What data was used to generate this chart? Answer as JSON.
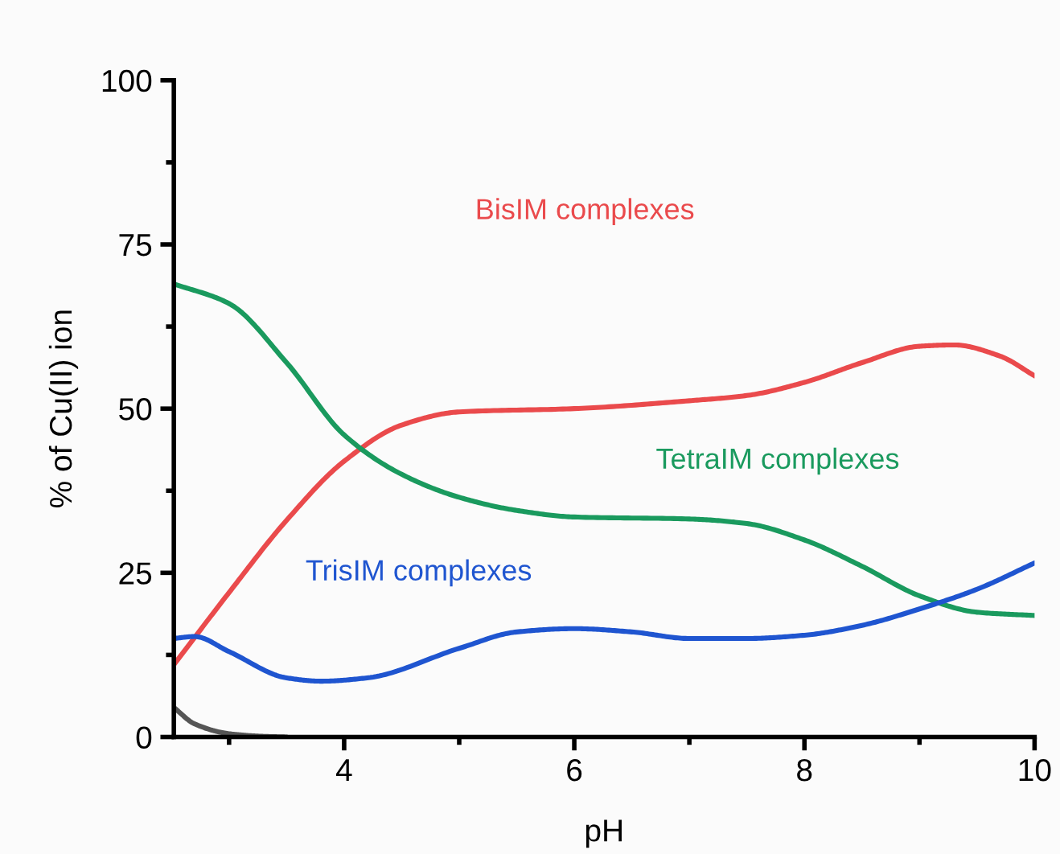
{
  "chart_data": {
    "type": "line",
    "xlabel": "pH",
    "ylabel": "% of Cu(II) ion",
    "xlim": [
      2.52,
      10
    ],
    "ylim": [
      0,
      100
    ],
    "xticks": [
      {
        "value": 3,
        "label": null
      },
      4,
      {
        "value": 5,
        "label": null
      },
      6,
      {
        "value": 7,
        "label": null
      },
      8,
      {
        "value": 9,
        "label": null
      },
      10
    ],
    "yticks": [
      0,
      {
        "value": 12.5,
        "label": null
      },
      25,
      {
        "value": 37.5,
        "label": null
      },
      50,
      {
        "value": 62.5,
        "label": null
      },
      75,
      {
        "value": 87.5,
        "label": null
      },
      100
    ],
    "grid": false,
    "marker": "none",
    "line_style": "solid",
    "series": [
      {
        "name": "BisIM complexes",
        "color": "#ea4a4c",
        "x": [
          2.52,
          3,
          3.5,
          4,
          4.5,
          5,
          6,
          7,
          7.5,
          8,
          8.5,
          9,
          9.3,
          9.7,
          10
        ],
        "values": [
          11,
          22,
          33,
          42,
          47.5,
          49.5,
          50,
          51.2,
          52,
          54,
          57,
          59.5,
          59.7,
          58,
          55
        ]
      },
      {
        "name": "TetraIM complexes",
        "color": "#1a9a5e",
        "x": [
          2.52,
          3,
          3.5,
          4,
          4.5,
          5,
          5.5,
          6,
          7,
          7.5,
          8,
          8.5,
          9,
          9.5,
          10
        ],
        "values": [
          69,
          66,
          57,
          46,
          40,
          36.5,
          34.5,
          33.5,
          33.2,
          32.5,
          30,
          26,
          21.5,
          19,
          18.5
        ]
      },
      {
        "name": "TrisIM complexes",
        "color": "#1f55d0",
        "x": [
          2.52,
          2.7,
          3,
          3.5,
          3.8,
          4.2,
          5,
          5.5,
          6,
          6.5,
          7,
          7.5,
          8,
          8.5,
          9,
          9.5,
          10
        ],
        "values": [
          15,
          15.3,
          13,
          9,
          8.5,
          9,
          13.5,
          16,
          16.5,
          16,
          15,
          15,
          15.5,
          17,
          19.5,
          22.5,
          26.5
        ]
      },
      {
        "color": "#555555",
        "x": [
          2.52,
          2.7,
          3,
          3.3,
          3.5
        ],
        "values": [
          4.5,
          2,
          0.5,
          0.1,
          0
        ]
      }
    ]
  }
}
